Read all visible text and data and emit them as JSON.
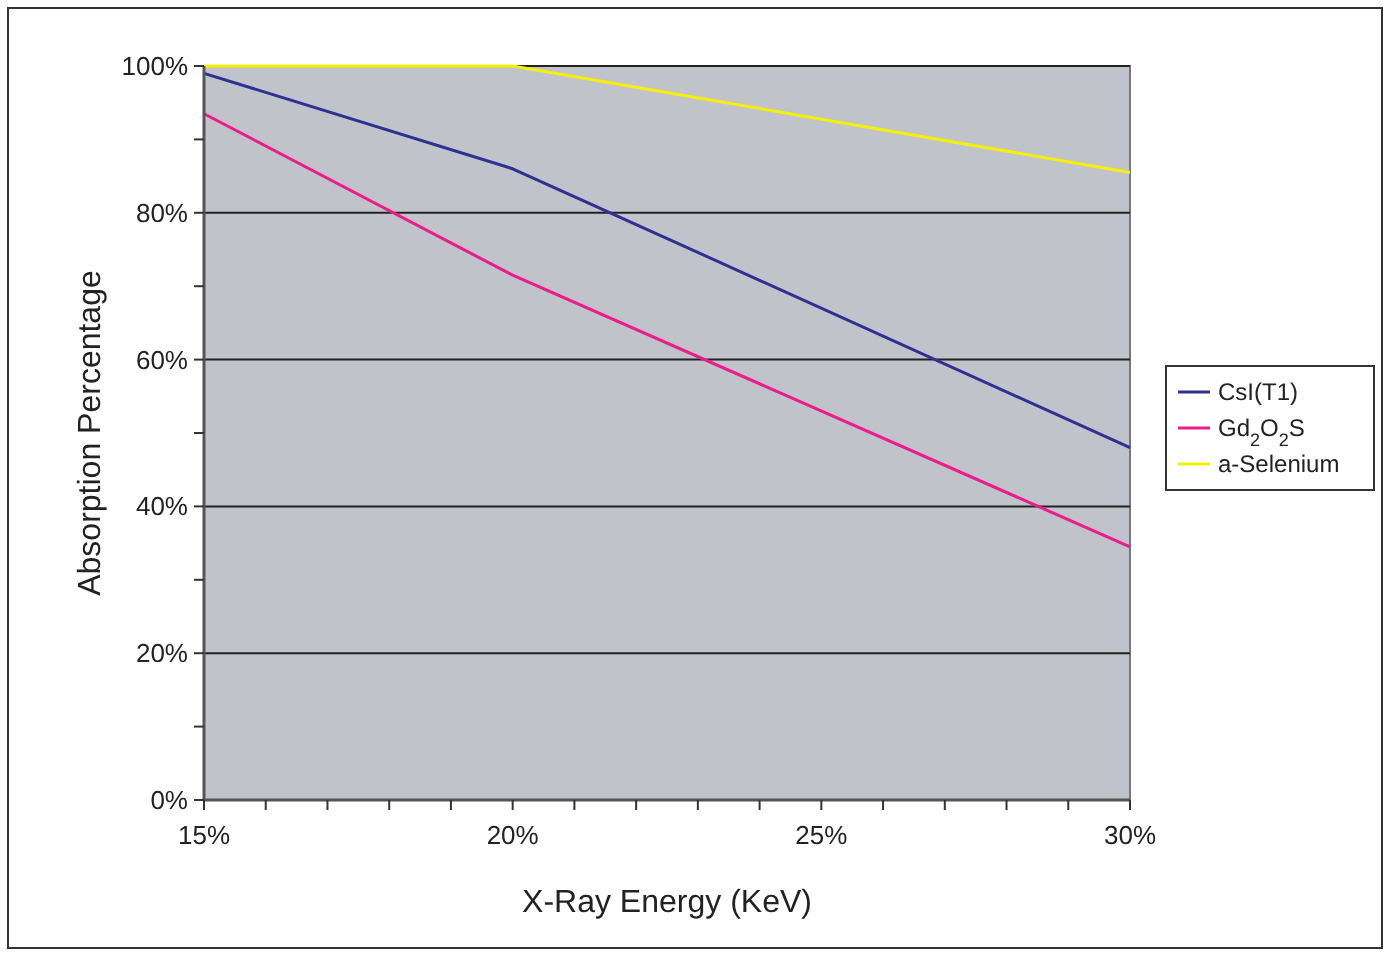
{
  "chart_data": {
    "type": "line",
    "xlabel": "X-Ray Energy (KeV)",
    "ylabel": "Absorption Percentage",
    "x": [
      15,
      20,
      30
    ],
    "series": [
      {
        "name": "CsI(T1)",
        "color": "#2e3192",
        "values": [
          99,
          86,
          48
        ]
      },
      {
        "name": "Gd$_{2}$O$_{2}$S",
        "color": "#ec1c8c",
        "values": [
          93.5,
          71.5,
          34.5
        ]
      },
      {
        "name": "a-Selenium",
        "color": "#f5f00a",
        "values": [
          100,
          100,
          85.5
        ]
      }
    ],
    "xlim": [
      15,
      30
    ],
    "xticks": [
      {
        "value": 15,
        "label": "15%"
      },
      {
        "value": 16,
        "label": null
      },
      {
        "value": 17,
        "label": null
      },
      {
        "value": 18,
        "label": null
      },
      {
        "value": 19,
        "label": null
      },
      {
        "value": 20,
        "label": "20%"
      },
      {
        "value": 21,
        "label": null
      },
      {
        "value": 22,
        "label": null
      },
      {
        "value": 23,
        "label": null
      },
      {
        "value": 24,
        "label": null
      },
      {
        "value": 25,
        "label": "25%"
      },
      {
        "value": 26,
        "label": null
      },
      {
        "value": 27,
        "label": null
      },
      {
        "value": 28,
        "label": null
      },
      {
        "value": 29,
        "label": null
      },
      {
        "value": 30,
        "label": "30%"
      }
    ],
    "ylim": [
      0,
      100
    ],
    "yticks": [
      {
        "value": 0,
        "label": "0%"
      },
      {
        "value": 10,
        "label": null
      },
      {
        "value": 20,
        "label": "20%"
      },
      {
        "value": 30,
        "label": null
      },
      {
        "value": 40,
        "label": "40%"
      },
      {
        "value": 50,
        "label": null
      },
      {
        "value": 60,
        "label": "60%"
      },
      {
        "value": 70,
        "label": null
      },
      {
        "value": 80,
        "label": "80%"
      },
      {
        "value": 90,
        "label": null
      },
      {
        "value": 100,
        "label": "100%"
      }
    ],
    "grid": "y",
    "legend": "right",
    "marker": "none",
    "line_style": "solid"
  }
}
